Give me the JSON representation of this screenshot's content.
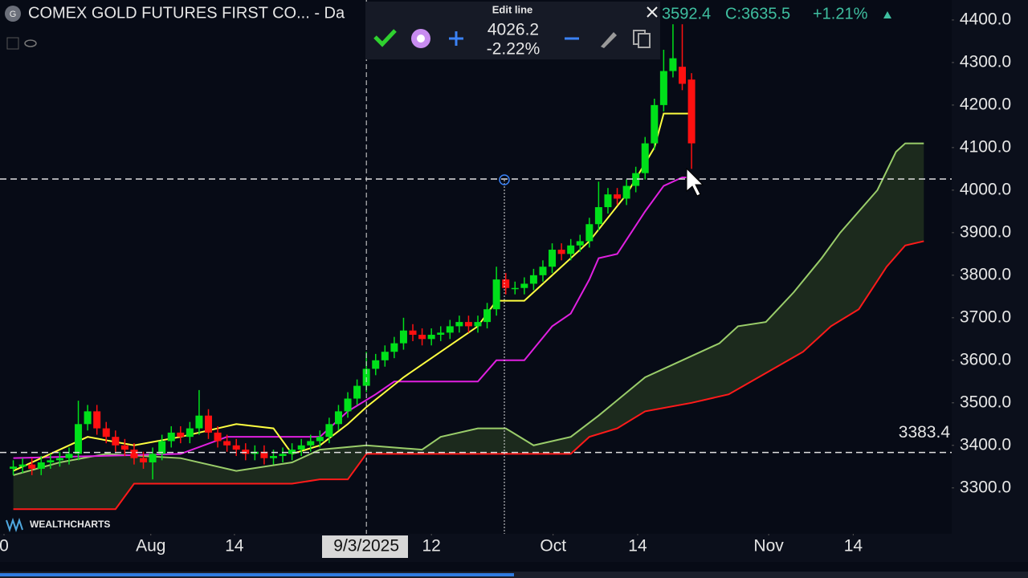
{
  "header": {
    "title": "COMEX GOLD FUTURES FIRST CO... - Da",
    "quote_low": "3592.4",
    "quote_close": "C:3635.5",
    "quote_change": "+1.21%",
    "watermark": "WEALTHCHARTS"
  },
  "toolbar": {
    "title": "Edit line",
    "price": 4026.2,
    "change": "-2.22%"
  },
  "chart_data": {
    "type": "candlestick",
    "xlim": [
      -39,
      63
    ],
    "ylim": [
      3192,
      4447
    ],
    "yticks": [
      {
        "value": 3300,
        "label": "3300.0"
      },
      {
        "value": 3400,
        "label": "3400.0"
      },
      {
        "value": 3500,
        "label": "3500.0"
      },
      {
        "value": 3600,
        "label": "3600.0"
      },
      {
        "value": 3700,
        "label": "3700.0"
      },
      {
        "value": 3800,
        "label": "3800.0"
      },
      {
        "value": 3900,
        "label": "3900.0"
      },
      {
        "value": 4000,
        "label": "4000.0"
      },
      {
        "value": 4100,
        "label": "4100.0"
      },
      {
        "value": 4200,
        "label": "4200.0"
      },
      {
        "value": 4300,
        "label": "4300.0"
      },
      {
        "value": 4400,
        "label": "4400.0"
      }
    ],
    "xticks": [
      {
        "value": -39,
        "label": "0"
      },
      {
        "value": -23.2,
        "label": "Aug"
      },
      {
        "value": -14.2,
        "label": "14"
      },
      {
        "value": 0,
        "label": "9/3/2025"
      },
      {
        "value": 7,
        "label": "12"
      },
      {
        "value": 20.1,
        "label": "Oct"
      },
      {
        "value": 29.2,
        "label": "14"
      },
      {
        "value": 43.3,
        "label": "Nov"
      },
      {
        "value": 52.4,
        "label": "14"
      }
    ],
    "up_color": "#00e01a",
    "down_color": "#ff1010",
    "x": [
      -38,
      -37,
      -36,
      -35,
      -34,
      -33,
      -32,
      -31,
      -30,
      -29,
      -28,
      -27,
      -26,
      -25,
      -24,
      -23,
      -22,
      -21,
      -20,
      -19,
      -18,
      -17,
      -16,
      -15,
      -14,
      -13,
      -12,
      -11,
      -10,
      -9,
      -8,
      -7,
      -6,
      -5,
      -4,
      -3,
      -2,
      -1,
      0,
      1,
      2,
      3,
      4,
      5,
      6,
      7,
      8,
      9,
      10,
      11,
      12,
      13,
      14,
      15,
      16,
      17,
      18,
      19,
      20,
      21,
      22,
      23,
      24,
      25,
      26,
      27,
      28,
      29,
      30,
      31,
      32,
      33,
      34,
      35
    ],
    "open": [
      3345,
      3350,
      3355,
      3345,
      3360,
      3365,
      3370,
      3380,
      3450,
      3480,
      3440,
      3420,
      3400,
      3390,
      3370,
      3360,
      3380,
      3410,
      3430,
      3420,
      3440,
      3470,
      3430,
      3410,
      3400,
      3390,
      3380,
      3385,
      3370,
      3375,
      3380,
      3390,
      3400,
      3410,
      3420,
      3450,
      3480,
      3510,
      3540,
      3580,
      3600,
      3620,
      3640,
      3670,
      3660,
      3650,
      3660,
      3665,
      3680,
      3690,
      3680,
      3690,
      3720,
      3790,
      3770,
      3770,
      3780,
      3800,
      3820,
      3860,
      3850,
      3870,
      3880,
      3920,
      3960,
      3990,
      3980,
      4010,
      4040,
      4110,
      4200,
      4280,
      4290,
      4260
    ],
    "high": [
      3365,
      3370,
      3370,
      3375,
      3380,
      3385,
      3395,
      3505,
      3495,
      3495,
      3455,
      3435,
      3415,
      3405,
      3385,
      3395,
      3425,
      3445,
      3445,
      3455,
      3530,
      3485,
      3445,
      3425,
      3415,
      3405,
      3400,
      3400,
      3390,
      3395,
      3405,
      3415,
      3425,
      3435,
      3465,
      3495,
      3525,
      3555,
      3620,
      3615,
      3635,
      3655,
      3700,
      3685,
      3675,
      3675,
      3680,
      3695,
      3705,
      3705,
      3705,
      3735,
      3820,
      3805,
      3785,
      3795,
      3815,
      3835,
      3875,
      3875,
      3885,
      3895,
      3935,
      4020,
      4005,
      4005,
      4025,
      4055,
      4125,
      4215,
      4330,
      4390,
      4390,
      4275
    ],
    "low": [
      3330,
      3335,
      3330,
      3330,
      3345,
      3350,
      3355,
      3365,
      3435,
      3425,
      3405,
      3385,
      3375,
      3355,
      3345,
      3320,
      3365,
      3395,
      3405,
      3405,
      3425,
      3415,
      3395,
      3385,
      3375,
      3365,
      3365,
      3355,
      3355,
      3360,
      3365,
      3375,
      3385,
      3395,
      3405,
      3435,
      3465,
      3495,
      3525,
      3565,
      3585,
      3605,
      3625,
      3645,
      3635,
      3635,
      3645,
      3650,
      3665,
      3665,
      3665,
      3675,
      3705,
      3755,
      3755,
      3755,
      3765,
      3785,
      3805,
      3835,
      3835,
      3855,
      3865,
      3905,
      3945,
      3965,
      3965,
      3995,
      4025,
      4095,
      4185,
      4265,
      4235,
      4050
    ],
    "close": [
      3350,
      3355,
      3345,
      3360,
      3365,
      3370,
      3380,
      3450,
      3480,
      3440,
      3420,
      3400,
      3390,
      3370,
      3360,
      3380,
      3410,
      3430,
      3420,
      3440,
      3470,
      3430,
      3410,
      3400,
      3390,
      3380,
      3385,
      3370,
      3375,
      3380,
      3390,
      3400,
      3410,
      3420,
      3450,
      3480,
      3510,
      3540,
      3580,
      3600,
      3620,
      3640,
      3670,
      3660,
      3650,
      3660,
      3665,
      3680,
      3690,
      3680,
      3690,
      3720,
      3790,
      3770,
      3770,
      3780,
      3800,
      3820,
      3860,
      3850,
      3870,
      3880,
      3920,
      3960,
      3990,
      3980,
      4010,
      4040,
      4110,
      4200,
      4280,
      4310,
      4250,
      4110
    ],
    "cloud_fill": "#1c2a1d",
    "lines": [
      {
        "color": "#9acd6a",
        "x": [
          -38,
          -33,
          -28,
          -20,
          -14,
          -8,
          -5,
          0,
          6,
          8,
          12,
          15,
          18,
          22,
          25,
          30,
          34,
          38,
          40,
          43,
          46,
          49,
          51,
          55,
          57,
          58,
          60
        ],
        "values": [
          3330,
          3360,
          3380,
          3370,
          3340,
          3360,
          3390,
          3400,
          3390,
          3420,
          3440,
          3440,
          3400,
          3420,
          3470,
          3560,
          3600,
          3640,
          3680,
          3690,
          3760,
          3840,
          3900,
          4000,
          4090,
          4110,
          4110
        ]
      },
      {
        "color": "#ff1a1a",
        "x": [
          -38,
          -27,
          -25,
          -8,
          -5,
          -2,
          0,
          8,
          22,
          24,
          27,
          30,
          35,
          39,
          43,
          47,
          50,
          53,
          56,
          58,
          60
        ],
        "values": [
          3250,
          3250,
          3310,
          3310,
          3320,
          3320,
          3380,
          3380,
          3380,
          3420,
          3440,
          3480,
          3500,
          3520,
          3570,
          3620,
          3680,
          3720,
          3820,
          3870,
          3880
        ]
      },
      {
        "color": "#e020e0",
        "x": [
          -38,
          -20,
          -15,
          -5,
          -2,
          1,
          3,
          12,
          14,
          17,
          20,
          22,
          24,
          25,
          27,
          30,
          32,
          34,
          35
        ],
        "values": [
          3370,
          3380,
          3420,
          3420,
          3480,
          3520,
          3550,
          3550,
          3600,
          3600,
          3680,
          3710,
          3790,
          3840,
          3850,
          3950,
          4010,
          4030,
          4030
        ]
      },
      {
        "color": "#ffff40",
        "x": [
          -38,
          -30,
          -25,
          -20,
          -14,
          -10,
          -8,
          -5,
          -2,
          0,
          4,
          8,
          12,
          14,
          17,
          20,
          24,
          28,
          31,
          32,
          35
        ],
        "values": [
          3340,
          3420,
          3400,
          3420,
          3450,
          3440,
          3380,
          3400,
          3450,
          3490,
          3560,
          3620,
          3680,
          3740,
          3740,
          3800,
          3880,
          3990,
          4100,
          4180,
          4180
        ]
      }
    ],
    "levels": [
      3383.4
    ]
  }
}
